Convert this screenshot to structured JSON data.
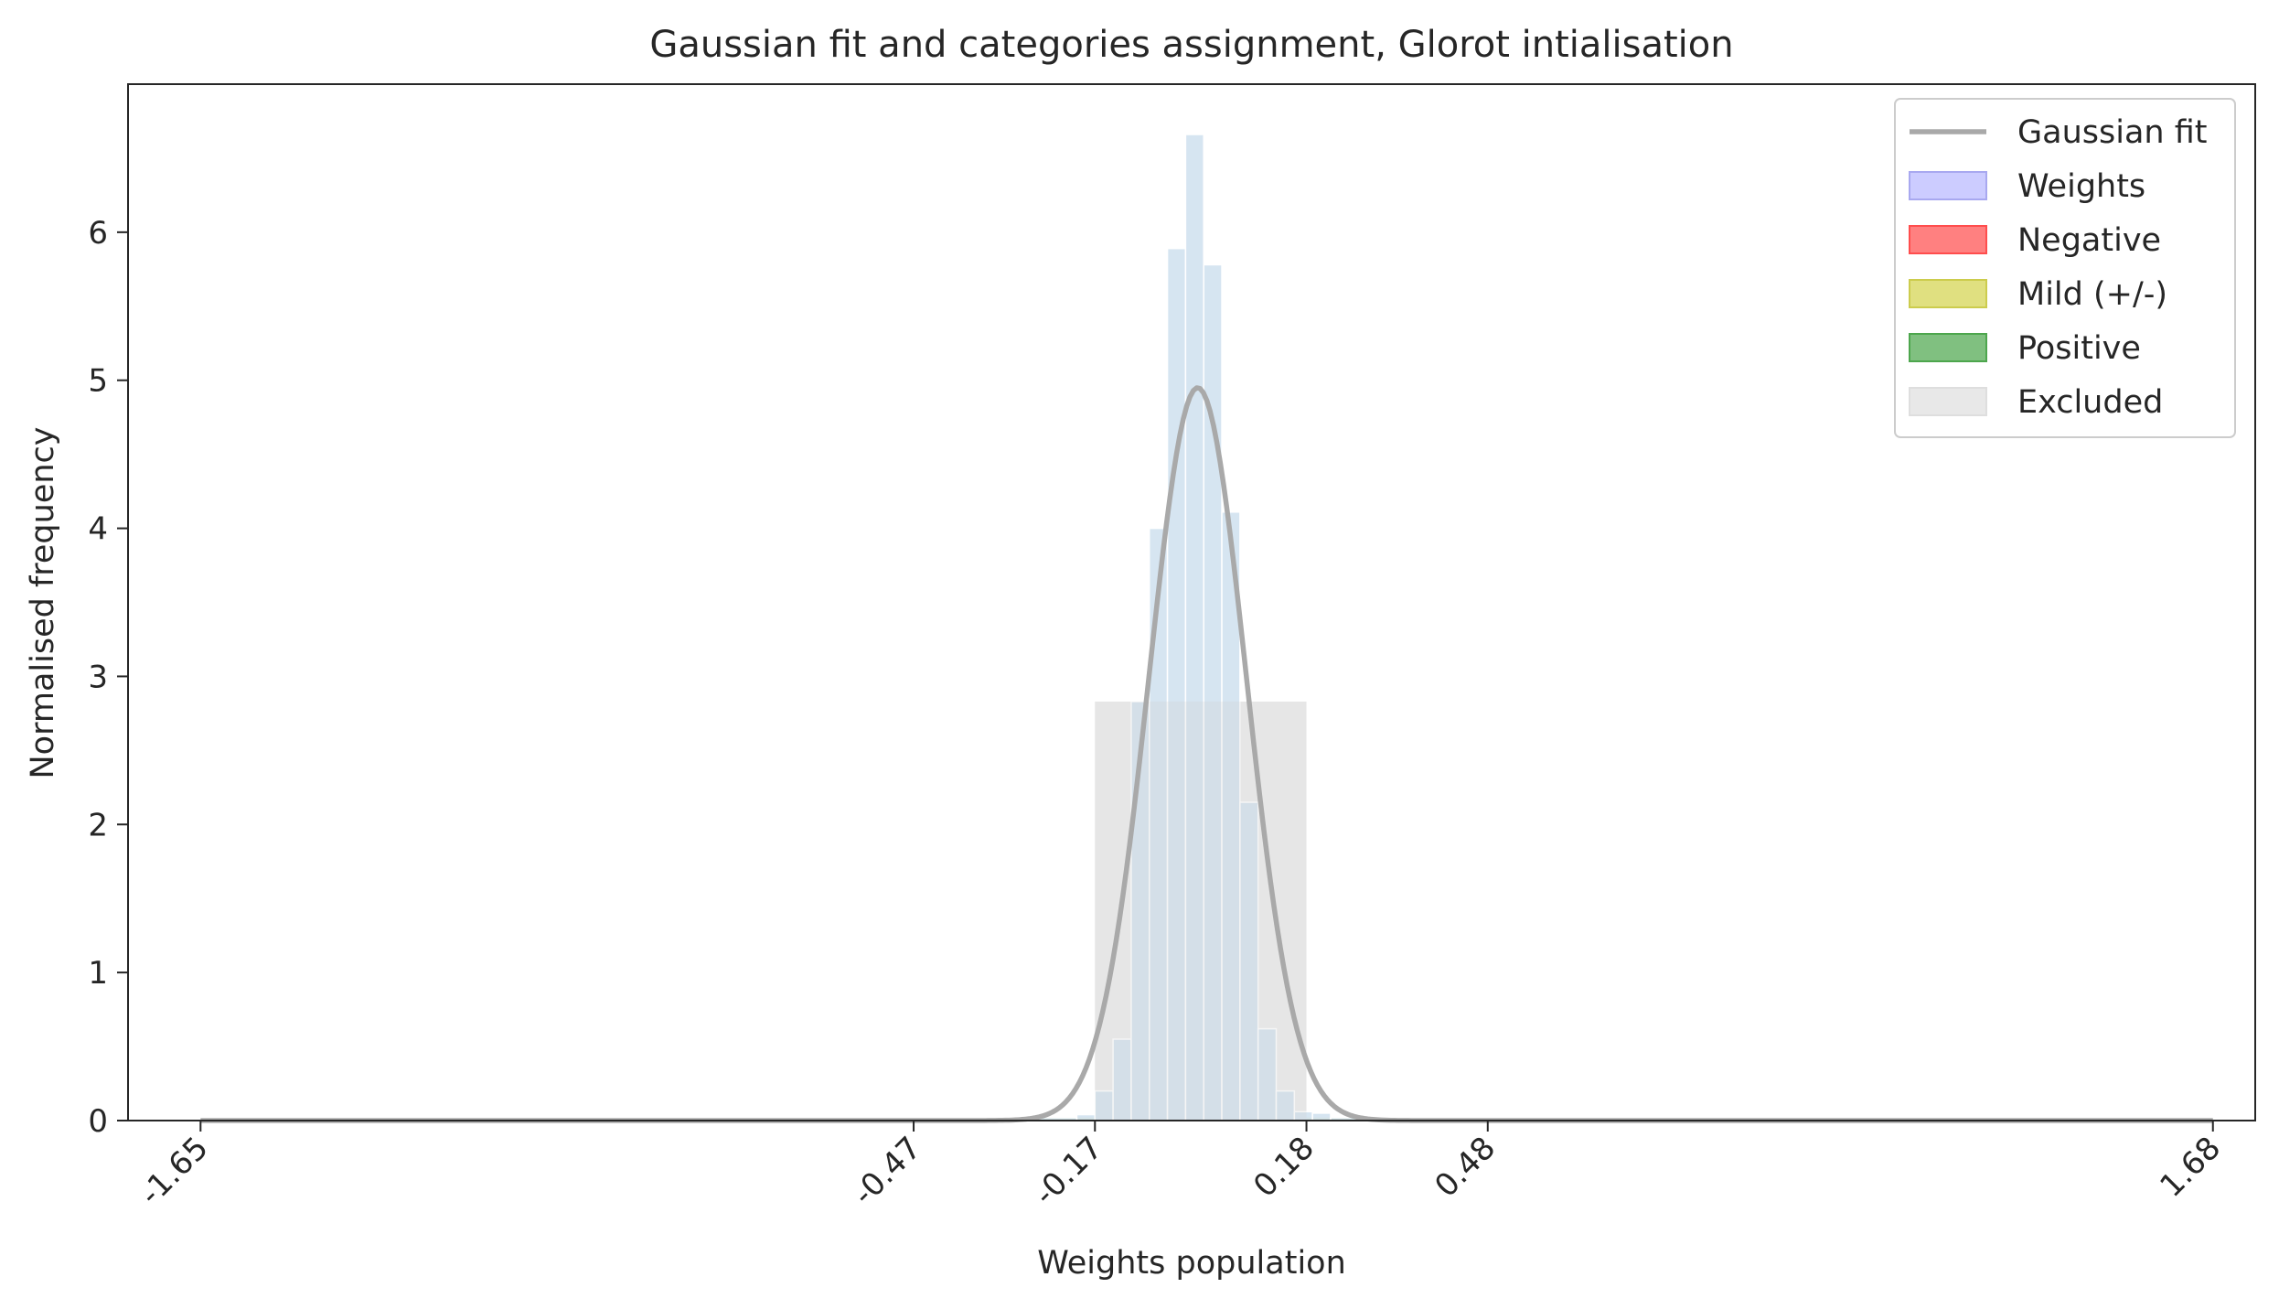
{
  "chart_data": {
    "type": "bar",
    "title": "Gaussian fit and categories assignment, Glorot intialisation",
    "xlabel": "Weights population",
    "ylabel": "Normalised frequency",
    "xlim": [
      -1.77,
      1.75
    ],
    "ylim": [
      0,
      7.0
    ],
    "x_ticks": [
      {
        "value": -1.65,
        "label": "-1.65"
      },
      {
        "value": -0.47,
        "label": "-0.47"
      },
      {
        "value": -0.17,
        "label": "-0.17"
      },
      {
        "value": 0.18,
        "label": "0.18"
      },
      {
        "value": 0.48,
        "label": "0.48"
      },
      {
        "value": 1.68,
        "label": "1.68"
      }
    ],
    "y_ticks": [
      {
        "value": 0,
        "label": "0"
      },
      {
        "value": 1,
        "label": "1"
      },
      {
        "value": 2,
        "label": "2"
      },
      {
        "value": 3,
        "label": "3"
      },
      {
        "value": 4,
        "label": "4"
      },
      {
        "value": 5,
        "label": "5"
      },
      {
        "value": 6,
        "label": "6"
      }
    ],
    "legend": {
      "position": "top-right",
      "entries": [
        {
          "label": "Gaussian fit",
          "kind": "line",
          "color": "#a9a9a9"
        },
        {
          "label": "Weights",
          "kind": "patch",
          "color": "#ccccff",
          "edge": "#a8a8f0"
        },
        {
          "label": "Negative",
          "kind": "patch",
          "color": "#ff8080",
          "edge": "#ff4d4d"
        },
        {
          "label": "Mild (+/-)",
          "kind": "patch",
          "color": "#e0e080",
          "edge": "#cccc4d"
        },
        {
          "label": "Positive",
          "kind": "patch",
          "color": "#80c080",
          "edge": "#4da64d"
        },
        {
          "label": "Excluded",
          "kind": "patch",
          "color": "#e8e8e8",
          "edge": "#dedede"
        }
      ]
    },
    "gaussian_fit": {
      "mean": 0.0,
      "std": 0.0805,
      "peak": 4.95,
      "color": "#a9a9a9"
    },
    "histogram": {
      "name": "Weights",
      "color": "#cfe0ee",
      "edge": "#ffffff",
      "bin_width": 0.03,
      "bins": [
        {
          "x0": -1.5,
          "x1": -0.2,
          "value": 0.02
        },
        {
          "x0": -0.2,
          "x1": -0.17,
          "value": 0.04
        },
        {
          "x0": -0.17,
          "x1": -0.14,
          "value": 0.2
        },
        {
          "x0": -0.14,
          "x1": -0.11,
          "value": 0.55
        },
        {
          "x0": -0.11,
          "x1": -0.08,
          "value": 2.83
        },
        {
          "x0": -0.08,
          "x1": -0.05,
          "value": 4.0
        },
        {
          "x0": -0.05,
          "x1": -0.02,
          "value": 5.89
        },
        {
          "x0": -0.02,
          "x1": 0.01,
          "value": 6.66
        },
        {
          "x0": 0.01,
          "x1": 0.04,
          "value": 5.78
        },
        {
          "x0": 0.04,
          "x1": 0.07,
          "value": 4.11
        },
        {
          "x0": 0.07,
          "x1": 0.1,
          "value": 2.15
        },
        {
          "x0": 0.1,
          "x1": 0.13,
          "value": 0.62
        },
        {
          "x0": 0.13,
          "x1": 0.16,
          "value": 0.2
        },
        {
          "x0": 0.16,
          "x1": 0.19,
          "value": 0.06
        },
        {
          "x0": 0.19,
          "x1": 0.22,
          "value": 0.05
        },
        {
          "x0": 0.22,
          "x1": 1.35,
          "value": 0.02
        }
      ]
    },
    "categories": [
      {
        "name": "Negative",
        "x0": -1.5,
        "x1": -0.47,
        "value": 0.02,
        "color": "#ff8080"
      },
      {
        "name": "Mild (+/-)",
        "x0": -0.47,
        "x1": -0.17,
        "value": 0.02,
        "color": "#e0e080"
      },
      {
        "name": "Excluded",
        "x0": -0.17,
        "x1": 0.18,
        "value": 2.83,
        "color": "#e8e8e8"
      },
      {
        "name": "Mild (+/-)",
        "x0": 0.18,
        "x1": 0.48,
        "value": 0.02,
        "color": "#e0e080"
      },
      {
        "name": "Positive",
        "x0": 0.48,
        "x1": 1.35,
        "value": 0.02,
        "color": "#80c080"
      }
    ]
  }
}
